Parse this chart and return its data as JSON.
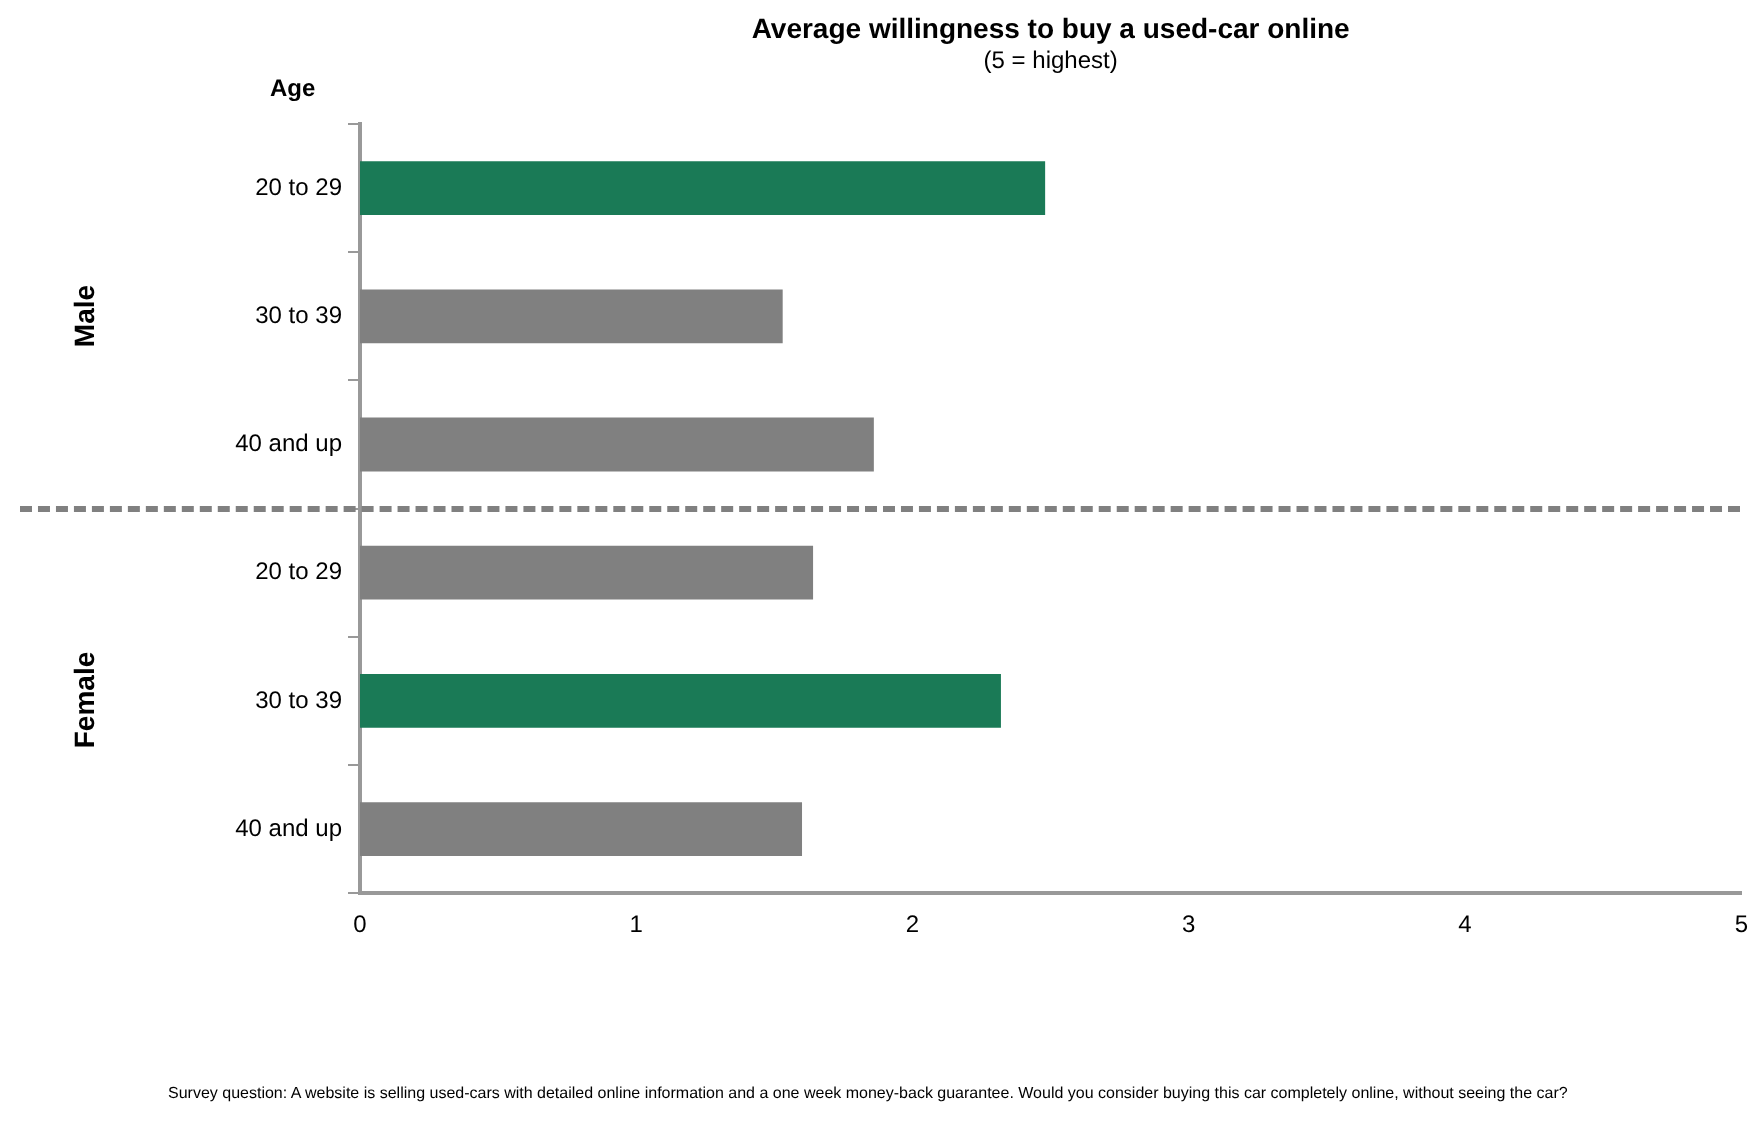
{
  "chart_data": {
    "type": "bar",
    "orientation": "horizontal",
    "title": "Average  willingness to buy a used-car online",
    "subtitle": "(5 = highest)",
    "ylabel": "Age",
    "categories": [
      "20 to 29",
      "30 to 39",
      "40 and up",
      "20 to 29",
      "30 to 39",
      "40 and up"
    ],
    "values": [
      2.48,
      1.53,
      1.86,
      1.64,
      2.32,
      1.6
    ],
    "colors": [
      "#1a7a56",
      "#808080",
      "#808080",
      "#808080",
      "#1a7a56",
      "#808080"
    ],
    "xlim": [
      0,
      5
    ],
    "xticks": [
      0,
      1,
      2,
      3,
      4,
      5
    ],
    "grid": false,
    "legend": false,
    "annotations": [
      "Male",
      "Female",
      "Survey question:  A website is  selling used-cars with detailed  online information  and a one  week money-back guarantee. Would  you consider buying this  car completely online, without  seeing the car?"
    ]
  }
}
